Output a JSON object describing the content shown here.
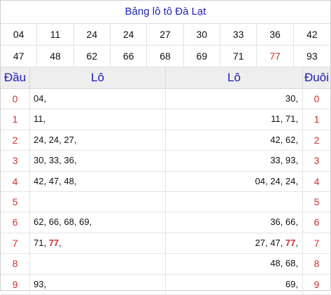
{
  "title": "Bảng lô tô Đà Lạt",
  "numbers": [
    "04",
    "11",
    "24",
    "24",
    "27",
    "30",
    "33",
    "36",
    "42",
    "47",
    "48",
    "62",
    "66",
    "68",
    "69",
    "71",
    "77",
    "93"
  ],
  "special_number": "77",
  "colors": {
    "title": "#2020c0",
    "header": "#1a1ab8",
    "accent_red": "#d32f2f",
    "header_bg": "#eeeeee"
  },
  "table": {
    "headers": {
      "dau": "Đầu",
      "lo_left": "Lô",
      "lo_right": "Lô",
      "duoi": "Đuôi"
    },
    "rows": [
      {
        "digit": "0",
        "left": [
          "04"
        ],
        "right": [
          "30"
        ]
      },
      {
        "digit": "1",
        "left": [
          "11"
        ],
        "right": [
          "11",
          "71"
        ]
      },
      {
        "digit": "2",
        "left": [
          "24",
          "24",
          "27"
        ],
        "right": [
          "42",
          "62"
        ]
      },
      {
        "digit": "3",
        "left": [
          "30",
          "33",
          "36"
        ],
        "right": [
          "33",
          "93"
        ]
      },
      {
        "digit": "4",
        "left": [
          "42",
          "47",
          "48"
        ],
        "right": [
          "04",
          "24",
          "24"
        ]
      },
      {
        "digit": "5",
        "left": [],
        "right": []
      },
      {
        "digit": "6",
        "left": [
          "62",
          "66",
          "68",
          "69"
        ],
        "right": [
          "36",
          "66"
        ]
      },
      {
        "digit": "7",
        "left": [
          "71",
          "77"
        ],
        "right": [
          "27",
          "47",
          "77"
        ]
      },
      {
        "digit": "8",
        "left": [],
        "right": [
          "48",
          "68"
        ]
      },
      {
        "digit": "9",
        "left": [
          "93"
        ],
        "right": [
          "69"
        ]
      }
    ]
  }
}
